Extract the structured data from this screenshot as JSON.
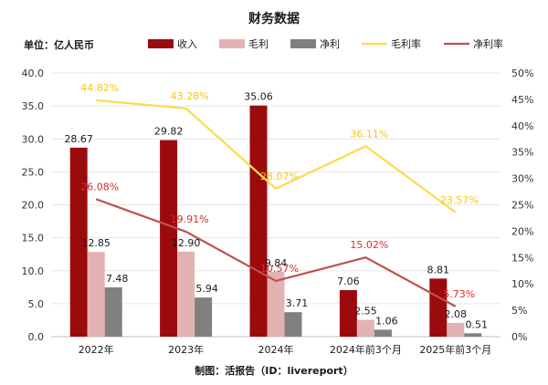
{
  "chart_data": {
    "type": "bar",
    "title": "财务数据",
    "unit_label": "单位：亿人民币",
    "source_note": "制图：活报告（ID：livereport）",
    "categories": [
      "2022年",
      "2023年",
      "2024年",
      "2024年前3个月",
      "2025年前3个月"
    ],
    "left_axis": {
      "min": 0,
      "max": 40,
      "step": 5,
      "tick_labels": [
        "0.0",
        "5.0",
        "10.0",
        "15.0",
        "20.0",
        "25.0",
        "30.0",
        "35.0",
        "40.0"
      ]
    },
    "right_axis": {
      "min": 0,
      "max": 50,
      "step": 5,
      "tick_labels": [
        "0%",
        "5%",
        "10%",
        "15%",
        "20%",
        "25%",
        "30%",
        "35%",
        "40%",
        "45%",
        "50%"
      ]
    },
    "grid": true,
    "legend_position": "top",
    "series": [
      {
        "name": "收入",
        "kind": "bar",
        "axis": "left",
        "color": "#9b0b0e",
        "values": [
          28.67,
          29.82,
          35.06,
          7.06,
          8.81
        ],
        "labels": [
          "28.67",
          "29.82",
          "35.06",
          "7.06",
          "8.81"
        ]
      },
      {
        "name": "毛利",
        "kind": "bar",
        "axis": "left",
        "color": "#e3b2b3",
        "values": [
          12.85,
          12.9,
          9.84,
          2.55,
          2.08
        ],
        "labels": [
          "12.85",
          "12.90",
          "9.84",
          "2.55",
          "2.08"
        ]
      },
      {
        "name": "净利",
        "kind": "bar",
        "axis": "left",
        "color": "#808080",
        "values": [
          7.48,
          5.94,
          3.71,
          1.06,
          0.51
        ],
        "labels": [
          "7.48",
          "5.94",
          "3.71",
          "1.06",
          "0.51"
        ]
      },
      {
        "name": "毛利率",
        "kind": "line",
        "axis": "right",
        "color": "#fdd94f",
        "label_color": "#f5c518",
        "values": [
          44.82,
          43.28,
          28.07,
          36.11,
          23.57
        ],
        "labels": [
          "44.82%",
          "43.28%",
          "28.07%",
          "36.11%",
          "23.57%"
        ]
      },
      {
        "name": "净利率",
        "kind": "line",
        "axis": "right",
        "color": "#c0504d",
        "label_color": "#d92b2b",
        "values": [
          26.08,
          19.91,
          10.57,
          15.02,
          5.73
        ],
        "labels": [
          "26.08%",
          "19.91%",
          "10.57%",
          "15.02%",
          "5.73%"
        ]
      }
    ]
  }
}
